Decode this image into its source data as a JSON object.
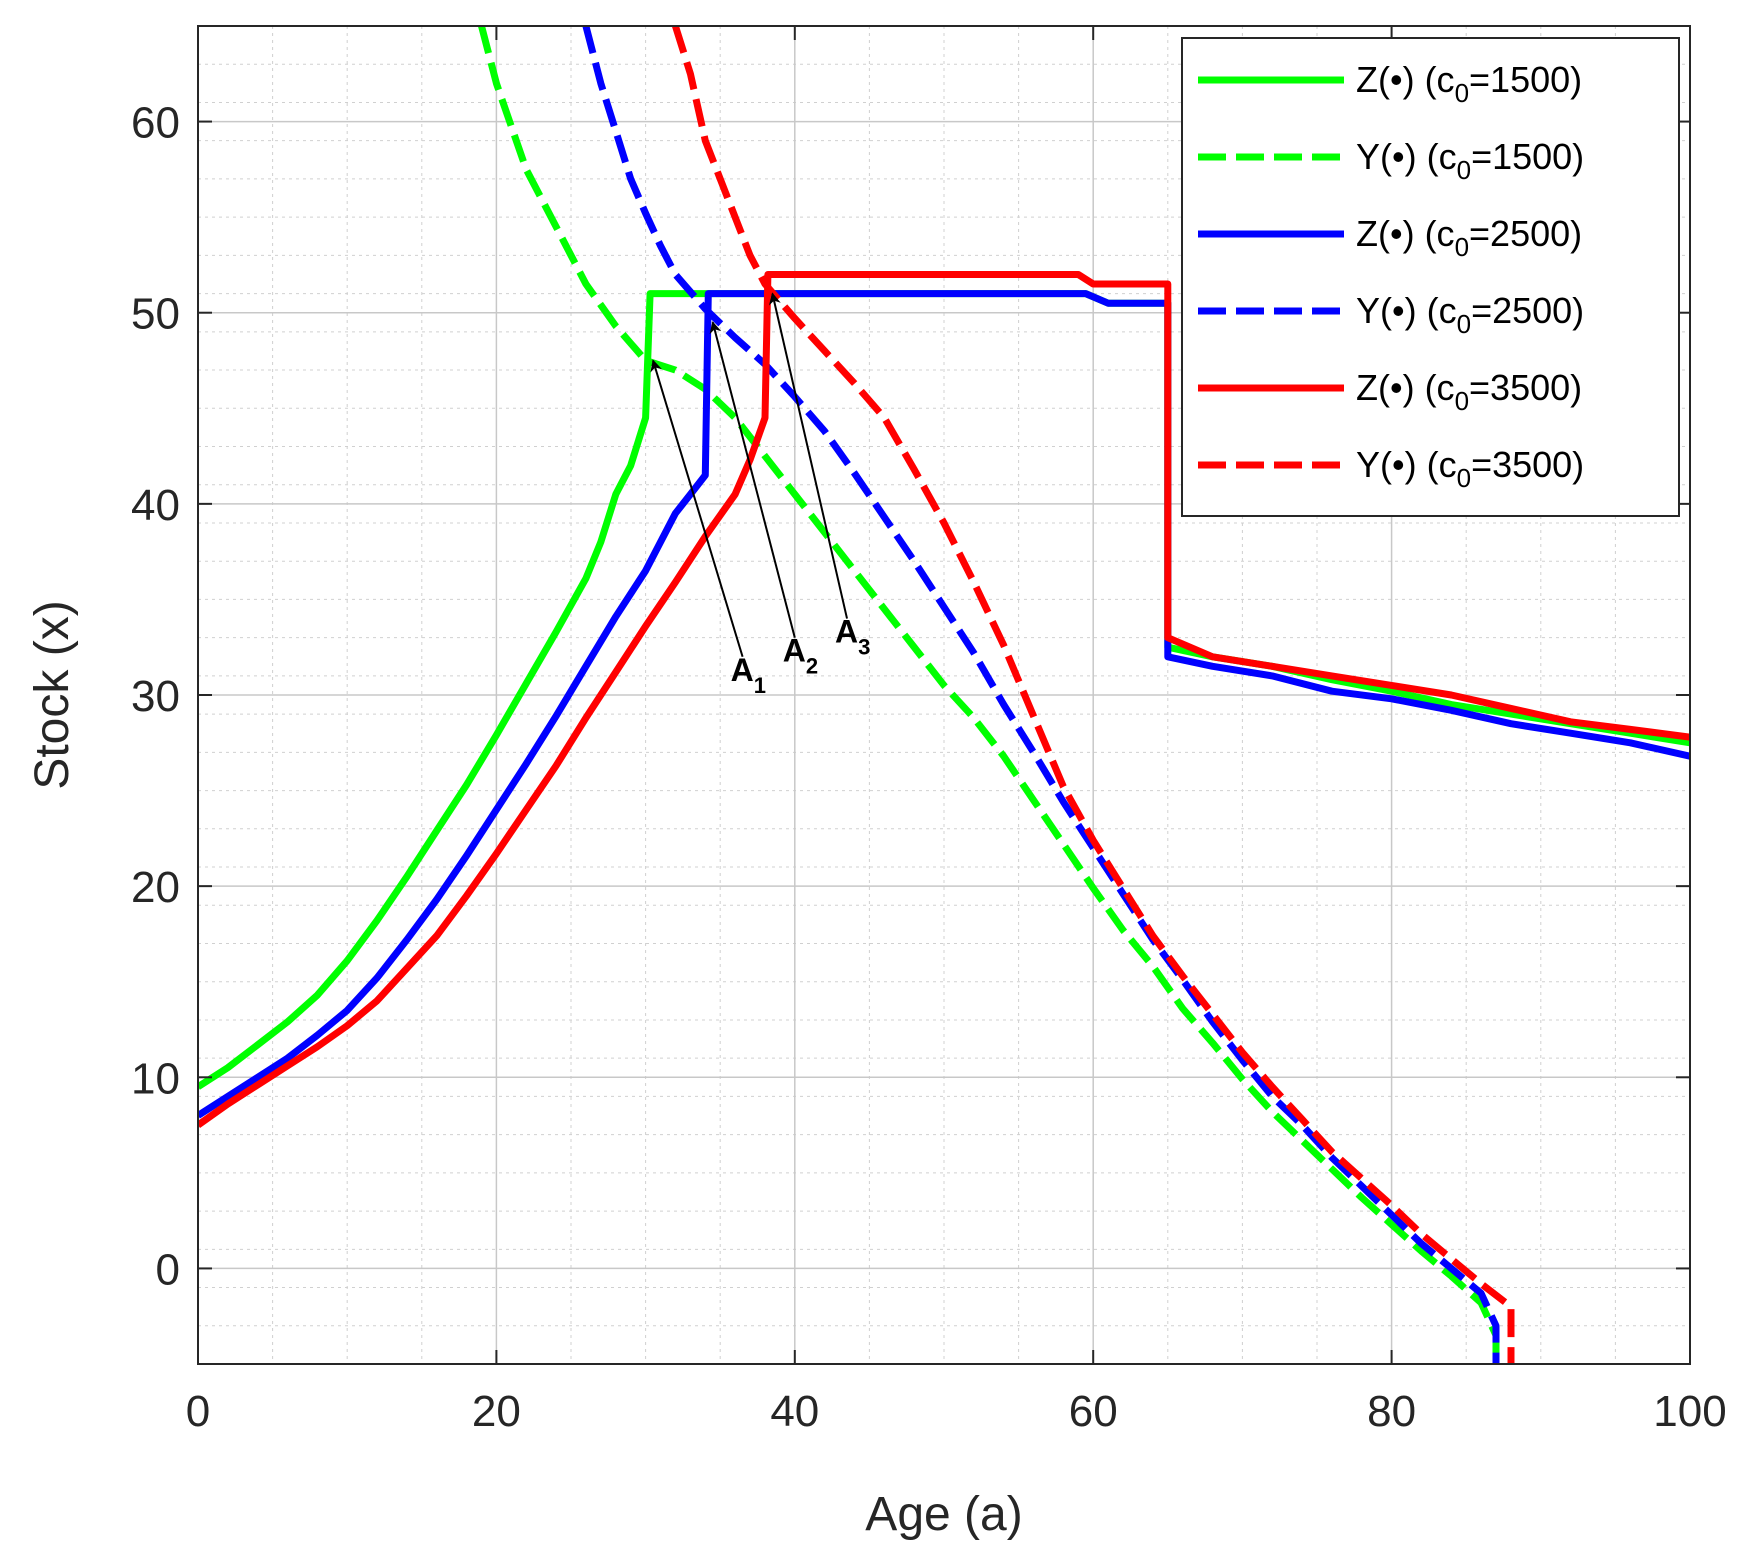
{
  "chart_data": {
    "type": "line",
    "title": "",
    "xlabel": "Age (a)",
    "ylabel": "Stock (x)",
    "xlim": [
      0,
      100
    ],
    "ylim": [
      -5,
      65
    ],
    "xticks": [
      0,
      20,
      40,
      60,
      80,
      100
    ],
    "xtick_labels": [
      "0",
      "20",
      "40",
      "60",
      "80",
      "100"
    ],
    "yticks": [
      0,
      10,
      20,
      30,
      40,
      50,
      60
    ],
    "ytick_labels": [
      "0",
      "10",
      "20",
      "30",
      "40",
      "50",
      "60"
    ],
    "grid": true,
    "minor_grid": true,
    "legend_position": "top-right",
    "series": [
      {
        "name": "Z(•) (c0=1500)",
        "legend_main": "Z(•) (c",
        "legend_sub": "0",
        "legend_tail": "=1500)",
        "color": "#00ff00",
        "style": "solid",
        "points": [
          [
            0,
            9.5
          ],
          [
            2,
            10.5
          ],
          [
            4,
            11.7
          ],
          [
            6,
            12.9
          ],
          [
            8,
            14.3
          ],
          [
            10,
            16.1
          ],
          [
            12,
            18.2
          ],
          [
            14,
            20.5
          ],
          [
            16,
            22.9
          ],
          [
            18,
            25.3
          ],
          [
            20,
            27.9
          ],
          [
            22,
            30.6
          ],
          [
            24,
            33.3
          ],
          [
            26,
            36.1
          ],
          [
            27,
            38
          ],
          [
            28,
            40.5
          ],
          [
            29,
            42
          ],
          [
            30,
            44.5
          ],
          [
            30.3,
            51
          ],
          [
            35,
            51
          ],
          [
            45,
            51
          ],
          [
            59.5,
            51
          ],
          [
            61,
            50.5
          ],
          [
            65,
            50.5
          ],
          [
            65,
            32.5
          ],
          [
            68,
            32
          ],
          [
            72,
            31.5
          ],
          [
            76,
            30.8
          ],
          [
            80,
            30.2
          ],
          [
            84,
            29.5
          ],
          [
            88,
            29
          ],
          [
            92,
            28.5
          ],
          [
            96,
            28
          ],
          [
            100,
            27.5
          ]
        ]
      },
      {
        "name": "Y(•) (c0=1500)",
        "legend_main": "Y(•) (c",
        "legend_sub": "0",
        "legend_tail": "=1500)",
        "color": "#00ff00",
        "style": "dashed",
        "points": [
          [
            19,
            65
          ],
          [
            20,
            62
          ],
          [
            22,
            57.5
          ],
          [
            24,
            54.5
          ],
          [
            26,
            51.5
          ],
          [
            28,
            49.3
          ],
          [
            30,
            47.5
          ],
          [
            32,
            47
          ],
          [
            34,
            46
          ],
          [
            36,
            44.5
          ],
          [
            38,
            42.5
          ],
          [
            40,
            40.5
          ],
          [
            42,
            38.5
          ],
          [
            44,
            36.5
          ],
          [
            46,
            34.5
          ],
          [
            48,
            32.5
          ],
          [
            50,
            30.5
          ],
          [
            52,
            28.8
          ],
          [
            54,
            26.8
          ],
          [
            56,
            24.5
          ],
          [
            58,
            22.2
          ],
          [
            60,
            19.9
          ],
          [
            62,
            17.7
          ],
          [
            64,
            15.8
          ],
          [
            66,
            13.6
          ],
          [
            68,
            11.8
          ],
          [
            70,
            9.9
          ],
          [
            72,
            8.2
          ],
          [
            74,
            6.7
          ],
          [
            76,
            5.2
          ],
          [
            78,
            3.7
          ],
          [
            80,
            2.3
          ],
          [
            82,
            0.9
          ],
          [
            84,
            -0.4
          ],
          [
            86,
            -1.8
          ],
          [
            87,
            -3.5
          ],
          [
            87,
            -5
          ]
        ]
      },
      {
        "name": "Z(•) (c0=2500)",
        "legend_main": "Z(•) (c",
        "legend_sub": "0",
        "legend_tail": "=2500)",
        "color": "#0000ff",
        "style": "solid",
        "points": [
          [
            0,
            8
          ],
          [
            2,
            9
          ],
          [
            4,
            10
          ],
          [
            6,
            11
          ],
          [
            8,
            12.2
          ],
          [
            10,
            13.5
          ],
          [
            12,
            15.2
          ],
          [
            14,
            17.2
          ],
          [
            16,
            19.3
          ],
          [
            18,
            21.6
          ],
          [
            20,
            24
          ],
          [
            22,
            26.4
          ],
          [
            24,
            28.9
          ],
          [
            26,
            31.5
          ],
          [
            28,
            34.1
          ],
          [
            30,
            36.5
          ],
          [
            32,
            39.5
          ],
          [
            33,
            40.5
          ],
          [
            34,
            41.5
          ],
          [
            34.2,
            51
          ],
          [
            45,
            51
          ],
          [
            59.5,
            51
          ],
          [
            61,
            50.5
          ],
          [
            65,
            50.5
          ],
          [
            65,
            32
          ],
          [
            68,
            31.5
          ],
          [
            72,
            31
          ],
          [
            76,
            30.2
          ],
          [
            80,
            29.8
          ],
          [
            84,
            29.2
          ],
          [
            88,
            28.5
          ],
          [
            92,
            28
          ],
          [
            96,
            27.5
          ],
          [
            100,
            26.8
          ]
        ]
      },
      {
        "name": "Y(•) (c0=2500)",
        "legend_main": "Y(•) (c",
        "legend_sub": "0",
        "legend_tail": "=2500)",
        "color": "#0000ff",
        "style": "dashed",
        "points": [
          [
            26,
            65
          ],
          [
            27,
            62
          ],
          [
            28,
            59.5
          ],
          [
            29,
            57
          ],
          [
            30,
            55.2
          ],
          [
            31,
            53.5
          ],
          [
            32,
            52
          ],
          [
            34,
            50.2
          ],
          [
            36,
            48.7
          ],
          [
            38,
            47.3
          ],
          [
            40,
            45.6
          ],
          [
            42,
            43.8
          ],
          [
            44,
            41.6
          ],
          [
            46,
            39.3
          ],
          [
            48,
            37
          ],
          [
            50,
            34.6
          ],
          [
            52,
            32.2
          ],
          [
            54,
            29.5
          ],
          [
            56,
            27
          ],
          [
            58,
            24.4
          ],
          [
            60,
            22
          ],
          [
            62,
            19.6
          ],
          [
            64,
            17.2
          ],
          [
            66,
            15.1
          ],
          [
            68,
            12.9
          ],
          [
            70,
            10.9
          ],
          [
            72,
            9
          ],
          [
            74,
            7.5
          ],
          [
            76,
            5.8
          ],
          [
            78,
            4.3
          ],
          [
            80,
            2.8
          ],
          [
            82,
            1.3
          ],
          [
            84,
            0
          ],
          [
            86,
            -1.3
          ],
          [
            87,
            -3
          ],
          [
            87,
            -5
          ]
        ]
      },
      {
        "name": "Z(•) (c0=3500)",
        "legend_main": "Z(•) (c",
        "legend_sub": "0",
        "legend_tail": "=3500)",
        "color": "#ff0000",
        "style": "solid",
        "points": [
          [
            0,
            7.5
          ],
          [
            2,
            8.6
          ],
          [
            4,
            9.6
          ],
          [
            6,
            10.6
          ],
          [
            8,
            11.6
          ],
          [
            10,
            12.7
          ],
          [
            12,
            14
          ],
          [
            14,
            15.7
          ],
          [
            16,
            17.4
          ],
          [
            18,
            19.5
          ],
          [
            20,
            21.7
          ],
          [
            22,
            24
          ],
          [
            24,
            26.3
          ],
          [
            26,
            28.8
          ],
          [
            28,
            31.2
          ],
          [
            30,
            33.6
          ],
          [
            32,
            35.9
          ],
          [
            34,
            38.3
          ],
          [
            36,
            40.5
          ],
          [
            37,
            42.3
          ],
          [
            38,
            44.5
          ],
          [
            38.2,
            52
          ],
          [
            50,
            52
          ],
          [
            59,
            52
          ],
          [
            60,
            51.5
          ],
          [
            65,
            51.5
          ],
          [
            65,
            33
          ],
          [
            68,
            32
          ],
          [
            72,
            31.5
          ],
          [
            76,
            31
          ],
          [
            80,
            30.5
          ],
          [
            84,
            30
          ],
          [
            88,
            29.3
          ],
          [
            92,
            28.6
          ],
          [
            96,
            28.2
          ],
          [
            100,
            27.8
          ]
        ]
      },
      {
        "name": "Y(•) (c0=3500)",
        "legend_main": "Y(•) (c",
        "legend_sub": "0",
        "legend_tail": "=3500)",
        "color": "#ff0000",
        "style": "dashed",
        "points": [
          [
            32,
            65
          ],
          [
            33,
            62.5
          ],
          [
            34,
            59
          ],
          [
            35,
            57
          ],
          [
            36,
            55
          ],
          [
            37,
            53
          ],
          [
            38,
            51.5
          ],
          [
            40,
            49.7
          ],
          [
            42,
            48
          ],
          [
            44,
            46.3
          ],
          [
            46,
            44.5
          ],
          [
            48,
            41.8
          ],
          [
            50,
            39
          ],
          [
            52,
            35.9
          ],
          [
            54,
            32.6
          ],
          [
            56,
            28.9
          ],
          [
            58,
            25.2
          ],
          [
            60,
            22.4
          ],
          [
            62,
            19.9
          ],
          [
            64,
            17.4
          ],
          [
            66,
            15.3
          ],
          [
            68,
            13.3
          ],
          [
            70,
            11.3
          ],
          [
            72,
            9.5
          ],
          [
            74,
            7.8
          ],
          [
            76,
            6.1
          ],
          [
            78,
            4.7
          ],
          [
            80,
            3.3
          ],
          [
            82,
            1.8
          ],
          [
            84,
            0.5
          ],
          [
            86,
            -0.8
          ],
          [
            88,
            -2
          ],
          [
            88,
            -5
          ]
        ]
      }
    ],
    "annotations": [
      {
        "label": "A",
        "sub": "1",
        "tip": [
          30.5,
          47.5
        ],
        "tail": [
          36.5,
          32
        ]
      },
      {
        "label": "A",
        "sub": "2",
        "tip": [
          34.5,
          49.5
        ],
        "tail": [
          40,
          33
        ]
      },
      {
        "label": "A",
        "sub": "3",
        "tip": [
          38.5,
          51
        ],
        "tail": [
          43.5,
          34
        ]
      }
    ]
  }
}
